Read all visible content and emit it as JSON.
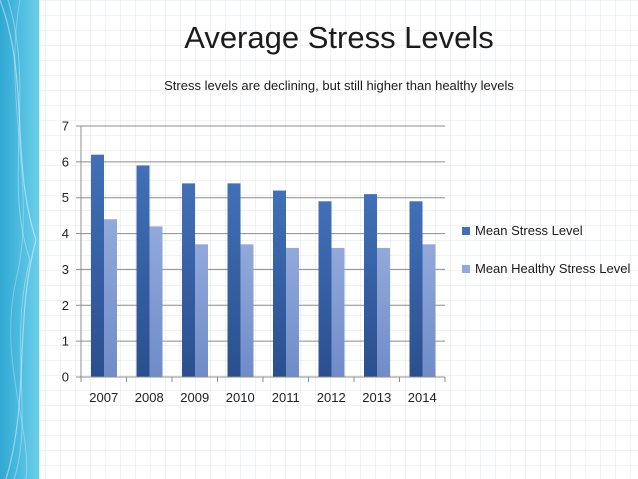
{
  "title": "Average Stress Levels",
  "subtitle": "Stress levels are declining, but still higher than healthy levels",
  "colors": {
    "series1": "#4170b8",
    "series1_dark": "#2a4f8e",
    "series2": "#92a9d9",
    "series2_dark": "#6f8cc9",
    "axis": "#8c8c8c",
    "gridline": "#8c8c8c",
    "band_light": "#59c6e6",
    "band_dark": "#2fa8d2"
  },
  "chart_data": {
    "type": "bar",
    "title": "Average Stress Levels",
    "subtitle": "Stress levels are declining, but still higher than healthy levels",
    "xlabel": "",
    "ylabel": "",
    "categories": [
      "2007",
      "2008",
      "2009",
      "2010",
      "2011",
      "2012",
      "2013",
      "2014"
    ],
    "series": [
      {
        "name": "Mean Stress Level",
        "values": [
          6.2,
          5.9,
          5.4,
          5.4,
          5.2,
          4.9,
          5.1,
          4.9
        ]
      },
      {
        "name": "Mean Healthy Stress Level",
        "values": [
          4.4,
          4.2,
          3.7,
          3.7,
          3.6,
          3.6,
          3.6,
          3.7
        ]
      }
    ],
    "ylim": [
      0,
      7
    ],
    "yticks": [
      "0",
      "1",
      "2",
      "3",
      "4",
      "5",
      "6",
      "7"
    ],
    "grid": true,
    "legend_position": "right"
  }
}
